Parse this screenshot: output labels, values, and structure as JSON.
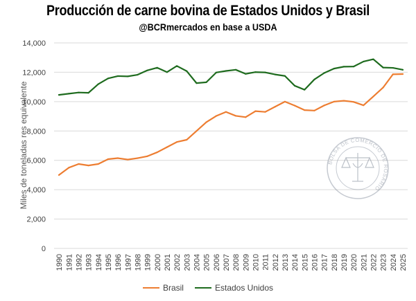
{
  "chart_data": {
    "type": "line",
    "title": "Producción de carne bovina de Estados Unidos y Brasil",
    "subtitle": "@BCRmercados en base a USDA",
    "ylabel": "Miles de toneladas res equivalente",
    "xlabel": "",
    "ylim": [
      0,
      14000
    ],
    "yticks": [
      0,
      2000,
      4000,
      6000,
      8000,
      10000,
      12000,
      14000
    ],
    "ytick_labels": [
      "0",
      "2,000",
      "4,000",
      "6,000",
      "8,000",
      "10,000",
      "12,000",
      "14,000"
    ],
    "grid": true,
    "legend_position": "bottom",
    "categories": [
      "1990",
      "1991",
      "1992",
      "1993",
      "1994",
      "1995",
      "1996",
      "1997",
      "1998",
      "1999",
      "2000",
      "2001",
      "2002",
      "2003",
      "2004",
      "2005",
      "2006",
      "2007",
      "2008",
      "2009",
      "2010",
      "2011",
      "2012",
      "2013",
      "2014",
      "2015",
      "2016",
      "2017",
      "2018",
      "2019",
      "2020",
      "2021",
      "2022",
      "2023",
      "2024",
      "2025"
    ],
    "series": [
      {
        "name": "Brasil",
        "color": "#ED7D31",
        "values": [
          5000,
          5500,
          5750,
          5650,
          5750,
          6080,
          6150,
          6050,
          6150,
          6280,
          6550,
          6900,
          7250,
          7400,
          8000,
          8600,
          9020,
          9300,
          9030,
          8940,
          9350,
          9300,
          9650,
          10000,
          9730,
          9420,
          9390,
          9740,
          10000,
          10060,
          9980,
          9750,
          10350,
          10960,
          11860,
          11880
        ]
      },
      {
        "name": "Estados Unidos",
        "color": "#1E6B1E",
        "values": [
          10460,
          10540,
          10620,
          10600,
          11190,
          11580,
          11740,
          11720,
          11830,
          12130,
          12310,
          12010,
          12430,
          12080,
          11260,
          11320,
          11980,
          12090,
          12170,
          11890,
          12010,
          11990,
          11850,
          11750,
          11080,
          10810,
          11510,
          11950,
          12250,
          12380,
          12390,
          12730,
          12890,
          12320,
          12300,
          12170
        ]
      }
    ],
    "watermark_text": "BOLSA DE COMERCIO DE ROSARIO",
    "watermark_icon": "scales-of-justice-seal"
  }
}
